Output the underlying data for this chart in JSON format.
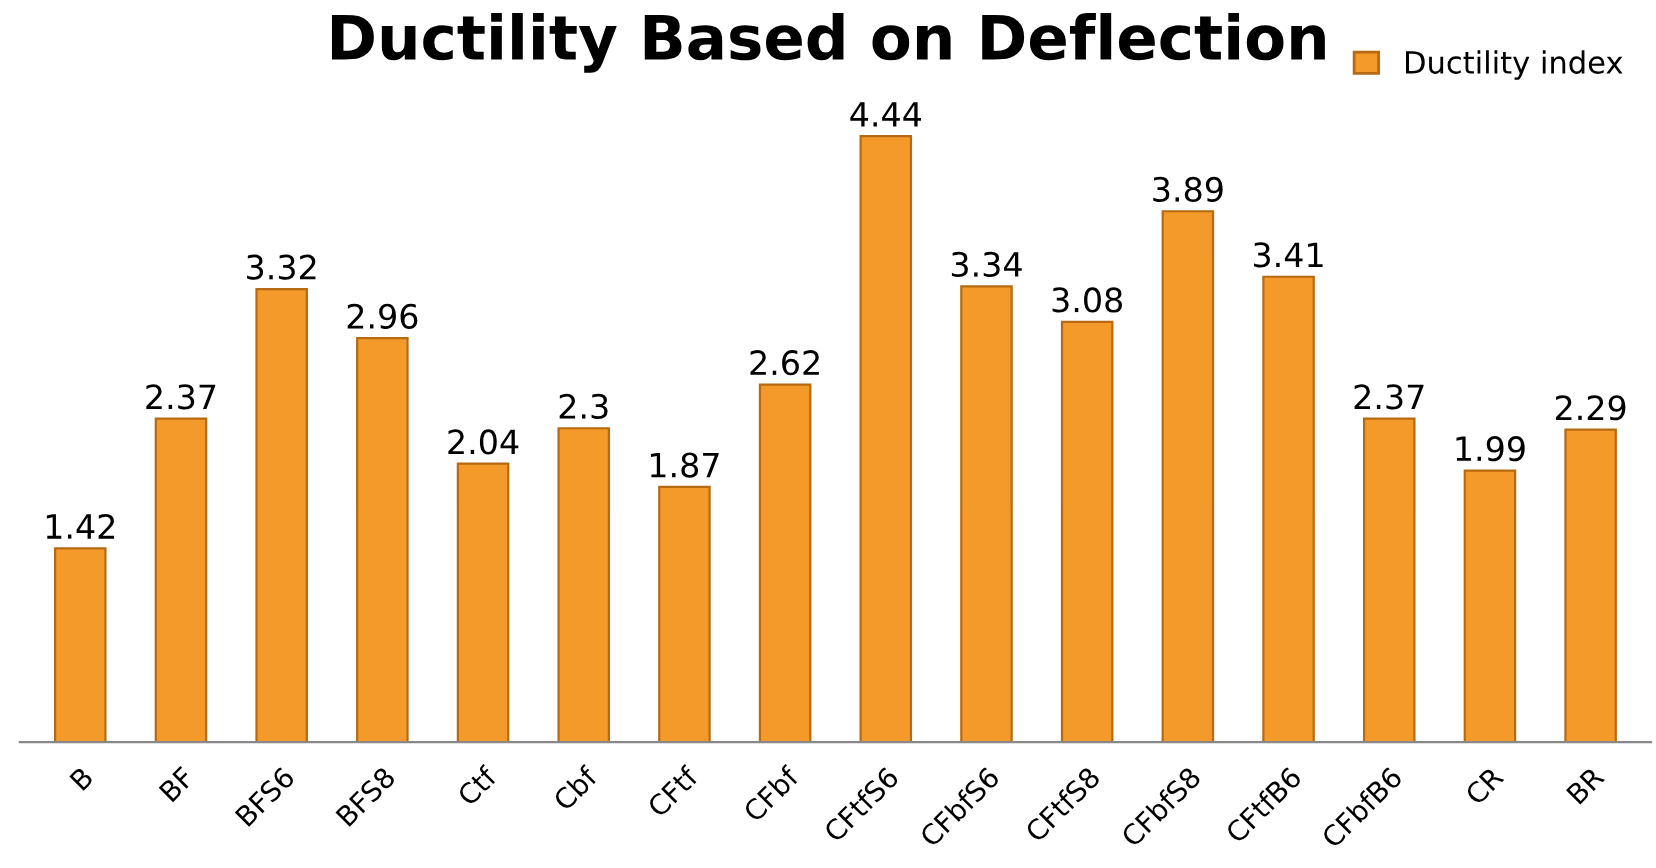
{
  "chart_data": {
    "type": "bar",
    "title": "Ductility Based on Deflection",
    "categories": [
      "B",
      "BF",
      "BFS6",
      "BFS8",
      "Ctf",
      "Cbf",
      "CFtf",
      "CFbf",
      "CFtfS6",
      "CFbfS6",
      "CFtfS8",
      "CFbfS8",
      "CFtfB6",
      "CFbfB6",
      "CR",
      "BR"
    ],
    "series": [
      {
        "name": "Ductility index",
        "color": "#f39a2a",
        "values": [
          1.42,
          2.37,
          3.32,
          2.96,
          2.04,
          2.3,
          1.87,
          2.62,
          4.44,
          3.34,
          3.08,
          3.89,
          3.41,
          2.37,
          1.99,
          2.29
        ]
      }
    ],
    "data_labels": true,
    "legend": "top right",
    "grid": false
  }
}
